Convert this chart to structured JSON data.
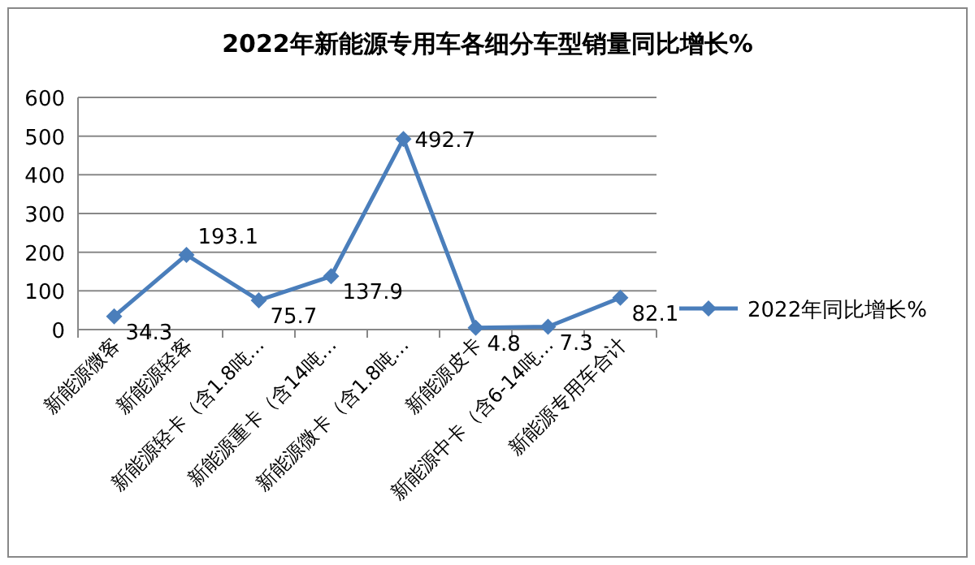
{
  "chart_data": {
    "type": "line",
    "title": "2022年新能源专用车各细分车型销量同比增长%",
    "categories": [
      "新能源微客",
      "新能源轻客",
      "新能源轻卡（含1.8吨…",
      "新能源重卡（含14吨…",
      "新能源微卡（含1.8吨…",
      "新能源皮卡",
      "新能源中卡（含6-14吨…",
      "新能源专用车合计"
    ],
    "series": [
      {
        "name": "2022年同比增长%",
        "color": "#4a7ebb",
        "values": [
          34.3,
          193.1,
          75.7,
          137.9,
          492.7,
          4.8,
          7.3,
          82.1
        ]
      }
    ],
    "ylim": [
      0,
      600
    ],
    "yticks": [
      0,
      100,
      200,
      300,
      400,
      500,
      600
    ],
    "grid": "y",
    "legend": "right",
    "marker": "diamond",
    "data_labels": true
  }
}
